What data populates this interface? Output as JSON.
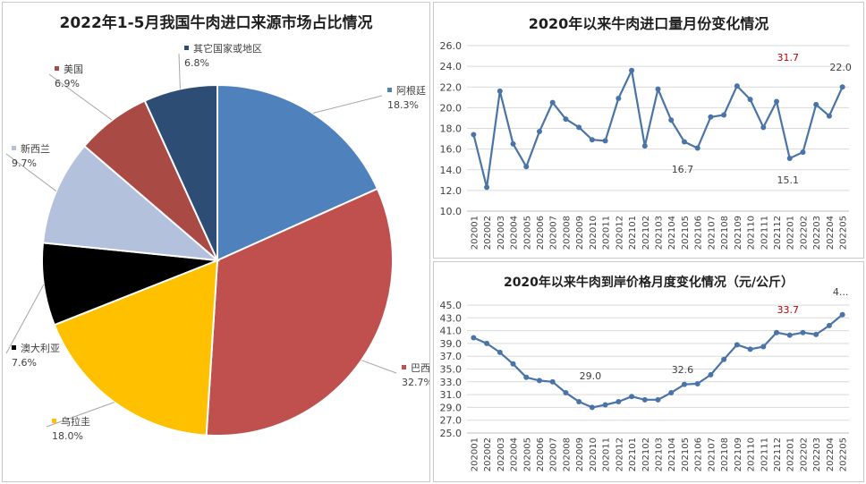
{
  "chart_data": [
    {
      "type": "pie",
      "title": "2022年1-5月我国牛肉进口来源市场占比情况",
      "slices": [
        {
          "label": "阿根廷",
          "value": 18.3,
          "value_label": "18.3%",
          "color": "#4f81bd"
        },
        {
          "label": "巴西",
          "value": 32.7,
          "value_label": "32.7%",
          "color": "#c0504d"
        },
        {
          "label": "乌拉圭",
          "value": 18.0,
          "value_label": "18.0%",
          "color": "#ffc000"
        },
        {
          "label": "澳大利亚",
          "value": 7.6,
          "value_label": "7.6%",
          "color": "#000000"
        },
        {
          "label": "新西兰",
          "value": 9.7,
          "value_label": "9.7%",
          "color": "#b4c1dc"
        },
        {
          "label": "美国",
          "value": 6.9,
          "value_label": "6.9%",
          "color": "#aa4a44"
        },
        {
          "label": "其它国家或地区",
          "value": 6.8,
          "value_label": "6.8%",
          "color": "#2e4d75"
        }
      ]
    },
    {
      "type": "line",
      "title": "2020年以来牛肉进口量月份变化情况",
      "categories": [
        "202001",
        "202002",
        "202003",
        "202004",
        "202005",
        "202006",
        "202007",
        "202008",
        "202009",
        "202010",
        "202011",
        "202012",
        "202101",
        "202102",
        "202103",
        "202104",
        "202105",
        "202106",
        "202107",
        "202108",
        "202109",
        "202110",
        "202111",
        "202112",
        "202201",
        "202202",
        "202203",
        "202204",
        "202205"
      ],
      "values": [
        17.4,
        12.3,
        21.6,
        16.5,
        14.3,
        17.7,
        20.5,
        18.9,
        18.1,
        16.9,
        16.8,
        20.9,
        23.6,
        16.3,
        21.8,
        18.8,
        16.7,
        16.1,
        19.1,
        19.3,
        22.1,
        20.8,
        18.1,
        20.6,
        15.1,
        15.7,
        20.3,
        19.2,
        22.0
      ],
      "ylim": [
        10.0,
        26.0
      ],
      "yticks": [
        "10.0",
        "12.0",
        "14.0",
        "16.0",
        "18.0",
        "20.0",
        "22.0",
        "24.0",
        "26.0"
      ],
      "data_labels": [
        {
          "category": "202105",
          "text": "16.7",
          "color": "#404040"
        },
        {
          "category": "202201",
          "text": "15.1",
          "color": "#404040"
        },
        {
          "category": "202201",
          "text": "31.7",
          "color": "#c00000"
        },
        {
          "category": "202205",
          "text": "22.0",
          "color": "#404040"
        }
      ],
      "grid": true,
      "color": "#4a74a8"
    },
    {
      "type": "line",
      "title": "2020年以来牛肉到岸价格月度变化情况（元/公斤）",
      "categories": [
        "202001",
        "202002",
        "202003",
        "202004",
        "202005",
        "202006",
        "202007",
        "202008",
        "202009",
        "202010",
        "202011",
        "202012",
        "202101",
        "202102",
        "202103",
        "202104",
        "202105",
        "202106",
        "202107",
        "202108",
        "202109",
        "202110",
        "202111",
        "202112",
        "202201",
        "202202",
        "202203",
        "202204",
        "202205"
      ],
      "values": [
        39.9,
        39.0,
        37.6,
        35.8,
        33.7,
        33.2,
        33.0,
        31.3,
        29.9,
        29.0,
        29.4,
        29.9,
        30.7,
        30.2,
        30.2,
        31.3,
        32.6,
        32.7,
        34.1,
        36.5,
        38.8,
        38.1,
        38.5,
        40.7,
        40.3,
        40.7,
        40.4,
        41.8,
        43.5
      ],
      "ylim": [
        25.0,
        45.0
      ],
      "yticks": [
        "25.0",
        "27.0",
        "29.0",
        "31.0",
        "33.0",
        "35.0",
        "37.0",
        "39.0",
        "41.0",
        "43.0",
        "45.0"
      ],
      "data_labels": [
        {
          "category": "202010",
          "text": "29.0",
          "color": "#404040"
        },
        {
          "category": "202105",
          "text": "32.6",
          "color": "#404040"
        },
        {
          "category": "202201",
          "text": "33.7",
          "color": "#c00000"
        },
        {
          "category": "202205",
          "text": "4...",
          "color": "#404040"
        }
      ],
      "grid": true,
      "color": "#4a74a8"
    }
  ]
}
